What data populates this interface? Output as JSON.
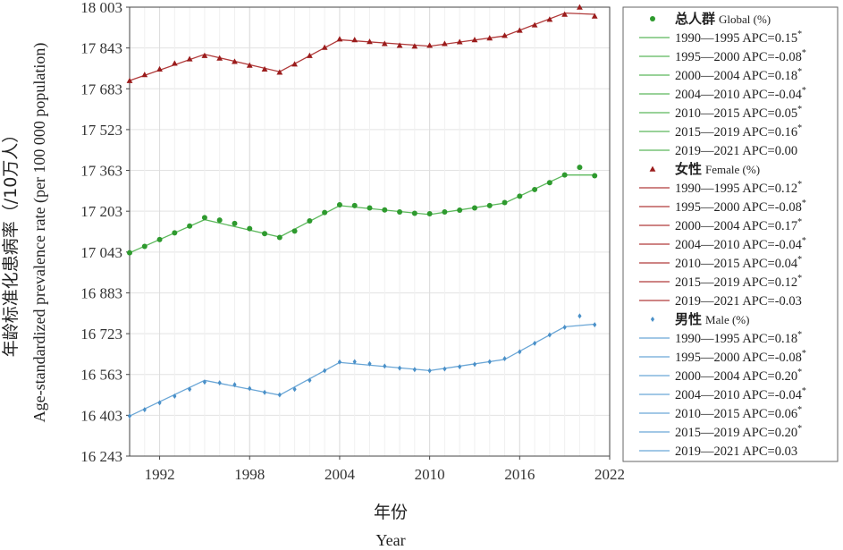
{
  "chart_data": {
    "type": "line",
    "xlabel_cn": "年份",
    "xlabel": "Year",
    "ylabel_cn": "年龄标准化患病率（/10万人）",
    "ylabel": "Age-standardized prevalence rate (per 100 000 population)",
    "xlim": [
      1990,
      2022
    ],
    "ylim": [
      16243,
      18003
    ],
    "xticks": [
      1992,
      1998,
      2004,
      2010,
      2016,
      2022
    ],
    "xtick_labels": [
      "1992",
      "1998",
      "2004",
      "2010",
      "2016",
      "2022"
    ],
    "yticks": [
      16243,
      16403,
      16563,
      16723,
      16883,
      17043,
      17203,
      17363,
      17523,
      17683,
      17843,
      18003
    ],
    "ytick_labels": [
      "16 243",
      "16 403",
      "16 563",
      "16 723",
      "16 883",
      "17 043",
      "17 203",
      "17 363",
      "17 523",
      "17 683",
      "17 843",
      "18 003"
    ],
    "grid": true,
    "legend_position": "right",
    "x": [
      1990,
      1991,
      1992,
      1993,
      1994,
      1995,
      1996,
      1997,
      1998,
      1999,
      2000,
      2001,
      2002,
      2003,
      2004,
      2005,
      2006,
      2007,
      2008,
      2009,
      2010,
      2011,
      2012,
      2013,
      2014,
      2015,
      2016,
      2017,
      2018,
      2019,
      2020,
      2021
    ],
    "series": [
      {
        "name_cn": "总人群",
        "name_en": "Global (%)",
        "marker": "circle",
        "color": "#2e9a2e",
        "line_color": "#5cb85c",
        "observed": [
          17040,
          17065,
          17092,
          17118,
          17145,
          17178,
          17168,
          17155,
          17135,
          17115,
          17100,
          17125,
          17165,
          17198,
          17228,
          17225,
          17216,
          17208,
          17200,
          17195,
          17193,
          17200,
          17207,
          17216,
          17225,
          17237,
          17262,
          17288,
          17315,
          17345,
          17375,
          17342
        ],
        "fitted_x": [
          1990,
          1995,
          2000,
          2004,
          2010,
          2015,
          2019,
          2021
        ],
        "fitted": [
          17040,
          17170,
          17102,
          17225,
          17190,
          17235,
          17345,
          17345
        ],
        "segments": [
          "1990—1995 APC=0.15",
          "1995—2000 APC=-0.08",
          "2000—2004 APC=0.18",
          "2004—2010 APC=-0.04",
          "2010—2015 APC=0.05",
          "2015—2019 APC=0.16",
          "2019—2021 APC=0.00"
        ],
        "segments_sig": [
          true,
          true,
          true,
          true,
          true,
          true,
          false
        ]
      },
      {
        "name_cn": "女性",
        "name_en": "Female (%)",
        "marker": "triangle",
        "color": "#9b1c1c",
        "line_color": "#b03a3a",
        "observed": [
          17715,
          17738,
          17760,
          17783,
          17800,
          17813,
          17803,
          17790,
          17775,
          17760,
          17748,
          17780,
          17813,
          17845,
          17878,
          17875,
          17868,
          17860,
          17853,
          17850,
          17853,
          17860,
          17867,
          17875,
          17882,
          17892,
          17912,
          17933,
          17955,
          17975,
          18003,
          17968
        ],
        "fitted_x": [
          1990,
          1995,
          2000,
          2004,
          2010,
          2015,
          2019,
          2021
        ],
        "fitted": [
          17715,
          17818,
          17750,
          17875,
          17850,
          17890,
          17980,
          17975
        ],
        "segments": [
          "1990—1995 APC=0.12",
          "1995—2000 APC=-0.08",
          "2000—2004 APC=0.17",
          "2004—2010 APC=-0.04",
          "2010—2015 APC=0.04",
          "2015—2019 APC=0.12",
          "2019—2021 APC=-0.03"
        ],
        "segments_sig": [
          true,
          true,
          true,
          true,
          true,
          true,
          false
        ]
      },
      {
        "name_cn": "男性",
        "name_en": "Male (%)",
        "marker": "diamond",
        "color": "#4a90c8",
        "line_color": "#6aa6d6",
        "observed": [
          16400,
          16425,
          16452,
          16478,
          16505,
          16533,
          16530,
          16523,
          16508,
          16493,
          16483,
          16505,
          16540,
          16578,
          16612,
          16613,
          16605,
          16596,
          16588,
          16582,
          16578,
          16585,
          16593,
          16603,
          16613,
          16625,
          16652,
          16685,
          16718,
          16748,
          16792,
          16758
        ],
        "fitted_x": [
          1990,
          1995,
          2000,
          2004,
          2010,
          2015,
          2019,
          2021
        ],
        "fitted": [
          16400,
          16540,
          16482,
          16610,
          16578,
          16622,
          16750,
          16760
        ],
        "segments": [
          "1990—1995 APC=0.18",
          "1995—2000 APC=-0.08",
          "2000—2004 APC=0.20",
          "2004—2010 APC=-0.04",
          "2010—2015 APC=0.06",
          "2015—2019 APC=0.20",
          "2019—2021 APC=0.03"
        ],
        "segments_sig": [
          true,
          true,
          true,
          true,
          true,
          true,
          false
        ]
      }
    ]
  }
}
